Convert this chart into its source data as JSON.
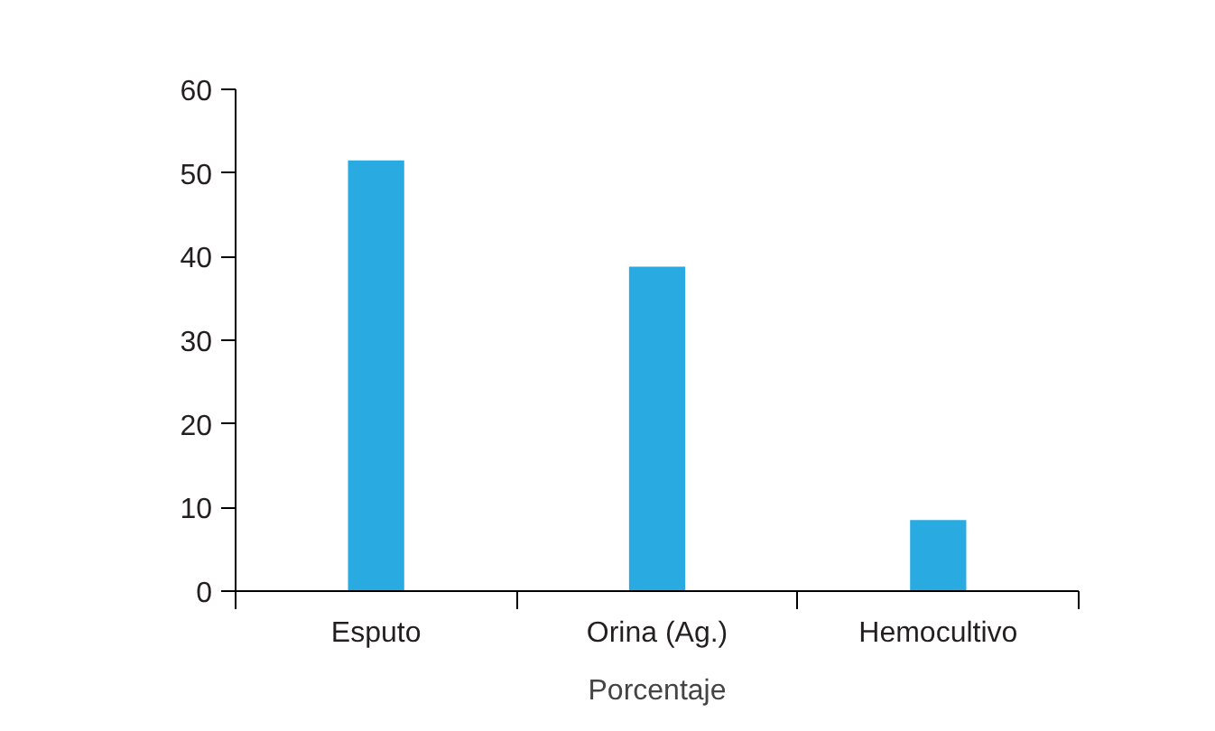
{
  "chart_data": {
    "type": "bar",
    "xlabel": "Porcentaje",
    "categories": [
      "Esputo",
      "Orina (Ag.)",
      "Hemocultivo"
    ],
    "values": [
      51.5,
      38.8,
      8.5
    ],
    "color": "#29abe2",
    "ylim": [
      0,
      60
    ],
    "yticks": [
      0,
      10,
      20,
      30,
      40,
      50,
      60
    ],
    "grid": false
  }
}
